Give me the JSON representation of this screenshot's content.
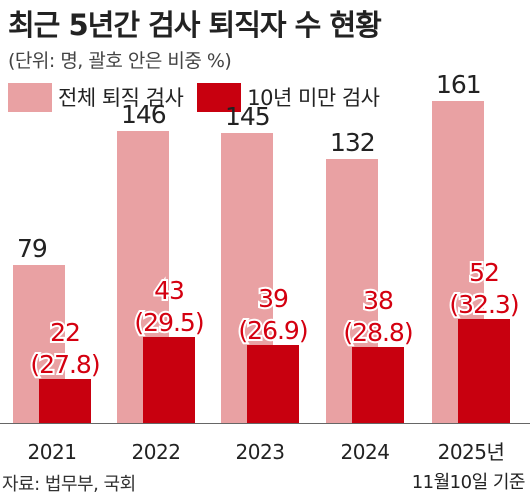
{
  "title": "최근 5년간 검사 퇴직자 수 현황",
  "subtitle": "(단위: 명, 괄호 안은 비중 %)",
  "source": "자료: 법무부, 국회",
  "colors": {
    "total": "#e9a1a3",
    "under10": "#c8000f",
    "label_red": "#d40010",
    "text": "#222222"
  },
  "chart_data": {
    "type": "bar",
    "title": "최근 5년간 검사 퇴직자 수 현황",
    "subtitle": "(단위: 명, 괄호 안은 비중 %)",
    "categories": [
      {
        "line1": "2021",
        "line2": ""
      },
      {
        "line1": "2022",
        "line2": ""
      },
      {
        "line1": "2023",
        "line2": ""
      },
      {
        "line1": "2024",
        "line2": ""
      },
      {
        "line1": "2025년",
        "line2": "11월10일 기준"
      }
    ],
    "series": [
      {
        "name": "전체 퇴직 검사",
        "values": [
          79,
          146,
          145,
          132,
          161
        ]
      },
      {
        "name": "10년 미만 검사",
        "values": [
          22,
          43,
          39,
          38,
          52
        ],
        "shares": [
          "(27.8)",
          "(29.5)",
          "(26.9)",
          "(28.8)",
          "(32.3)"
        ]
      }
    ],
    "legend_position": "top-left",
    "grid": false
  }
}
